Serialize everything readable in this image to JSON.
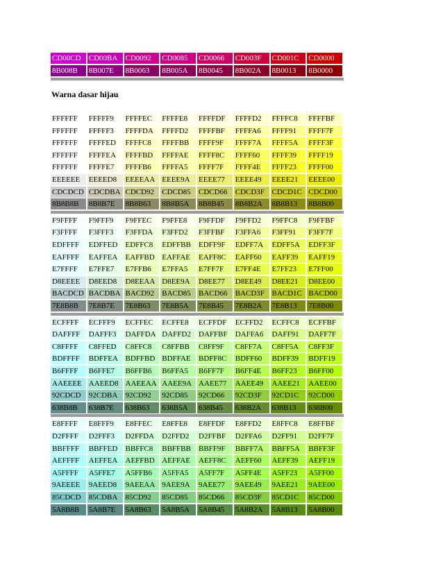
{
  "top_table": {
    "rows": [
      [
        "CD00CD",
        "CD00BA",
        "CD0092",
        "CD0085",
        "CD0066",
        "CD003F",
        "CD001C",
        "CD0000"
      ],
      [
        "8B008B",
        "8B007E",
        "8B0063",
        "8B005A",
        "8B0045",
        "8B002A",
        "8B0013",
        "8B0000"
      ]
    ]
  },
  "heading": "Warna dasar hijau",
  "blocks": [
    {
      "rows": [
        [
          "FFFFFF",
          "FFFFF9",
          "FFFFEC",
          "FFFFE8",
          "FFFFDF",
          "FFFFD2",
          "FFFFC8",
          "FFFFBF"
        ],
        [
          "FFFFFF",
          "FFFFF3",
          "FFFFDA",
          "FFFFD2",
          "FFFFBF",
          "FFFFA6",
          "FFFF91",
          "FFFF7F"
        ],
        [
          "FFFFFF",
          "FFFFED",
          "FFFFC8",
          "FFFFBB",
          "FFFF9F",
          "FFFF7A",
          "FFFF5A",
          "FFFF3F"
        ],
        [
          "FFFFFF",
          "FFFFEA",
          "FFFFBD",
          "FFFFAE",
          "FFFF8C",
          "FFFF60",
          "FFFF39",
          "FFFF19"
        ],
        [
          "FFFFFF",
          "FFFFE7",
          "FFFFB6",
          "FFFFA5",
          "FFFF7F",
          "FFFF4E",
          "FFFF23",
          "FFFF00"
        ],
        [
          "EEEEEE",
          "EEEED8",
          "EEEEAA",
          "EEEE9A",
          "EEEE77",
          "EEEE49",
          "EEEE21",
          "EEEE00"
        ],
        [
          "CDCDCD",
          "CDCDBA",
          "CDCD92",
          "CDCD85",
          "CDCD66",
          "CDCD3F",
          "CDCD1C",
          "CDCD00"
        ],
        [
          "8B8B8B",
          "8B8B7E",
          "8B8B63",
          "8B8B5A",
          "8B8B45",
          "8B8B2A",
          "8B8B13",
          "8B8B00"
        ]
      ]
    },
    {
      "rows": [
        [
          "F9FFFF",
          "F9FFF9",
          "F9FFEC",
          "F9FFE8",
          "F9FFDF",
          "F9FFD2",
          "F9FFC8",
          "F9FFBF"
        ],
        [
          "F3FFFF",
          "F3FFF3",
          "F3FFDA",
          "F3FFD2",
          "F3FFBF",
          "F3FFA6",
          "F3FF91",
          "F3FF7F"
        ],
        [
          "EDFFFF",
          "EDFFED",
          "EDFFC8",
          "EDFFBB",
          "EDFF9F",
          "EDFF7A",
          "EDFF5A",
          "EDFF3F"
        ],
        [
          "EAFFFF",
          "EAFFEA",
          "EAFFBD",
          "EAFFAE",
          "EAFF8C",
          "EAFF60",
          "EAFF39",
          "EAFF19"
        ],
        [
          "E7FFFF",
          "E7FFE7",
          "E7FFB6",
          "E7FFA5",
          "E7FF7F",
          "E7FF4E",
          "E7FF23",
          "E7FF00"
        ],
        [
          "D8EEEE",
          "D8EED8",
          "D8EEAA",
          "D8EE9A",
          "D8EE77",
          "D8EE49",
          "D8EE21",
          "D8EE00"
        ],
        [
          "BACDCD",
          "BACDBA",
          "BACD92",
          "BACD85",
          "BACD66",
          "BACD3F",
          "BACD1C",
          "BACD00"
        ],
        [
          "7E8B8B",
          "7E8B7E",
          "7E8B63",
          "7E8B5A",
          "7E8B45",
          "7E8B2A",
          "7E8B13",
          "7E8B00"
        ]
      ]
    },
    {
      "rows": [
        [
          "ECFFFF",
          "ECFFF9",
          "ECFFEC",
          "ECFFE8",
          "ECFFDF",
          "ECFFD2",
          "ECFFC8",
          "ECFFBF"
        ],
        [
          "DAFFFF",
          "DAFFF3",
          "DAFFDA",
          "DAFFD2",
          "DAFFBF",
          "DAFFA6",
          "DAFF91",
          "DAFF7F"
        ],
        [
          "C8FFFF",
          "C8FFED",
          "C8FFC8",
          "C8FFBB",
          "C8FF9F",
          "C8FF7A",
          "C8FF5A",
          "C8FF3F"
        ],
        [
          "BDFFFF",
          "BDFFEA",
          "BDFFBD",
          "BDFFAE",
          "BDFF8C",
          "BDFF60",
          "BDFF39",
          "BDFF19"
        ],
        [
          "B6FFFF",
          "B6FFE7",
          "B6FFB6",
          "B6FFA5",
          "B6FF7F",
          "B6FF4E",
          "B6FF23",
          "B6FF00"
        ],
        [
          "AAEEEE",
          "AAEED8",
          "AAEEAA",
          "AAEE9A",
          "AAEE77",
          "AAEE49",
          "AAEE21",
          "AAEE00"
        ],
        [
          "92CDCD",
          "92CDBA",
          "92CD92",
          "92CD85",
          "92CD66",
          "92CD3F",
          "92CD1C",
          "92CD00"
        ],
        [
          "638B8B",
          "638B7E",
          "638B63",
          "638B5A",
          "638B45",
          "638B2A",
          "638B13",
          "638B00"
        ]
      ]
    },
    {
      "rows": [
        [
          "E8FFFF",
          "E8FFF9",
          "E8FFEC",
          "E8FFE8",
          "E8FFDF",
          "E8FFD2",
          "E8FFC8",
          "E8FFBF"
        ],
        [
          "D2FFFF",
          "D2FFF3",
          "D2FFDA",
          "D2FFD2",
          "D2FFBF",
          "D2FFA6",
          "D2FF91",
          "D2FF7F"
        ],
        [
          "BBFFFF",
          "BBFFED",
          "BBFFC8",
          "BBFFBB",
          "BBFF9F",
          "BBFF7A",
          "BBFF5A",
          "BBFF3F"
        ],
        [
          "AEFFFF",
          "AEFFEA",
          "AEFFBD",
          "AEFFAE",
          "AEFF8C",
          "AEFF60",
          "AEFF39",
          "AEFF19"
        ],
        [
          "A5FFFF",
          "A5FFE7",
          "A5FFB6",
          "A5FFA5",
          "A5FF7F",
          "A5FF4E",
          "A5FF23",
          "A5FF00"
        ],
        [
          "9AEEEE",
          "9AEED8",
          "9AEEAA",
          "9AEE9A",
          "9AEE77",
          "9AEE49",
          "9AEE21",
          "9AEE00"
        ],
        [
          "85CDCD",
          "85CDBA",
          "85CD92",
          "85CD85",
          "85CD66",
          "85CD3F",
          "85CD1C",
          "85CD00"
        ],
        [
          "5A8B8B",
          "5A8B7E",
          "5A8B63",
          "5A8B5A",
          "5A8B45",
          "5A8B2A",
          "5A8B13",
          "5A8B00"
        ]
      ]
    }
  ]
}
